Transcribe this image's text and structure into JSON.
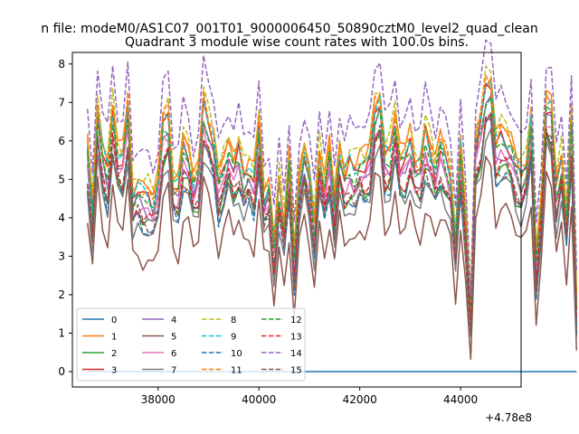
{
  "chart_data": {
    "type": "line",
    "suptitle": "n file: modeM0/AS1C07_001T01_9000006450_50890cztM0_level2_quad_clean",
    "title": "Quadrant 3 module wise count rates with 100.0s bins.",
    "xlabel": "",
    "ylabel": "",
    "x_offset_label": "+4.78e8",
    "xlim": [
      36300,
      45200
    ],
    "ylim": [
      -0.4,
      8.3
    ],
    "xticks": [
      38000,
      40000,
      42000,
      44000
    ],
    "xtick_labels": [
      "38000",
      "40000",
      "42000",
      "44000"
    ],
    "yticks": [
      0,
      1,
      2,
      3,
      4,
      5,
      6,
      7,
      8
    ],
    "ytick_labels": [
      "0",
      "1",
      "2",
      "3",
      "4",
      "5",
      "6",
      "7",
      "8"
    ],
    "legend_position": "lower-left",
    "legend_columns": 4,
    "x_start": 36600,
    "x_step": 100,
    "profile": [
      5.2,
      3.6,
      6.3,
      5.1,
      4.6,
      6.2,
      5.1,
      5.0,
      6.3,
      4.0,
      4.2,
      4.0,
      4.0,
      3.8,
      4.3,
      5.9,
      6.1,
      4.3,
      4.2,
      5.3,
      5.1,
      4.3,
      4.6,
      6.4,
      5.9,
      5.4,
      4.3,
      4.8,
      5.3,
      4.8,
      5.2,
      4.5,
      4.7,
      4.4,
      5.8,
      4.0,
      4.2,
      2.7,
      4.3,
      3.2,
      4.8,
      2.3,
      4.4,
      5.2,
      4.5,
      3.2,
      5.1,
      4.2,
      5.1,
      3.8,
      5.2,
      4.5,
      4.8,
      4.6,
      4.9,
      4.8,
      5.1,
      6.3,
      6.5,
      5.0,
      5.1,
      6.0,
      4.9,
      5.0,
      5.5,
      4.8,
      4.7,
      5.6,
      5.2,
      4.7,
      5.3,
      5.0,
      4.5,
      2.8,
      5.2,
      3.3,
      0.8,
      5.3,
      5.9,
      6.9,
      6.9,
      5.3,
      5.6,
      5.5,
      5.3,
      4.8,
      4.5,
      4.8,
      5.9,
      2.2,
      3.8,
      6.5,
      6.3,
      4.2,
      5.0,
      3.4,
      5.9,
      1.1
    ],
    "series": [
      {
        "name": "0",
        "color": "#1f77b4",
        "dashed": false,
        "offset": 0,
        "amp": 0,
        "constant": 0
      },
      {
        "name": "1",
        "color": "#ff7f0e",
        "dashed": false,
        "offset": 0.8,
        "amp": 1.0
      },
      {
        "name": "2",
        "color": "#2ca02c",
        "dashed": false,
        "offset": -0.2,
        "amp": 0.9
      },
      {
        "name": "3",
        "color": "#d62728",
        "dashed": false,
        "offset": 0.5,
        "amp": 1.0
      },
      {
        "name": "4",
        "color": "#9467bd",
        "dashed": false,
        "offset": 0.2,
        "amp": 0.95
      },
      {
        "name": "5",
        "color": "#8c564b",
        "dashed": false,
        "offset": -1.2,
        "amp": 0.85
      },
      {
        "name": "6",
        "color": "#e377c2",
        "dashed": false,
        "offset": 0.1,
        "amp": 0.9
      },
      {
        "name": "7",
        "color": "#7f7f7f",
        "dashed": false,
        "offset": -0.5,
        "amp": 0.9
      },
      {
        "name": "8",
        "color": "#bcbd22",
        "dashed": true,
        "offset": 0.9,
        "amp": 1.0
      },
      {
        "name": "9",
        "color": "#17becf",
        "dashed": true,
        "offset": 0.6,
        "amp": 1.0
      },
      {
        "name": "10",
        "color": "#1f77b4",
        "dashed": true,
        "offset": -0.3,
        "amp": 0.9
      },
      {
        "name": "11",
        "color": "#ff7f0e",
        "dashed": true,
        "offset": 0.7,
        "amp": 1.0
      },
      {
        "name": "12",
        "color": "#2ca02c",
        "dashed": true,
        "offset": 0.4,
        "amp": 0.95
      },
      {
        "name": "13",
        "color": "#d62728",
        "dashed": true,
        "offset": -0.1,
        "amp": 0.9
      },
      {
        "name": "14",
        "color": "#9467bd",
        "dashed": true,
        "offset": 1.6,
        "amp": 1.05
      },
      {
        "name": "15",
        "color": "#8c564b",
        "dashed": true,
        "offset": -0.2,
        "amp": 0.9
      }
    ]
  }
}
